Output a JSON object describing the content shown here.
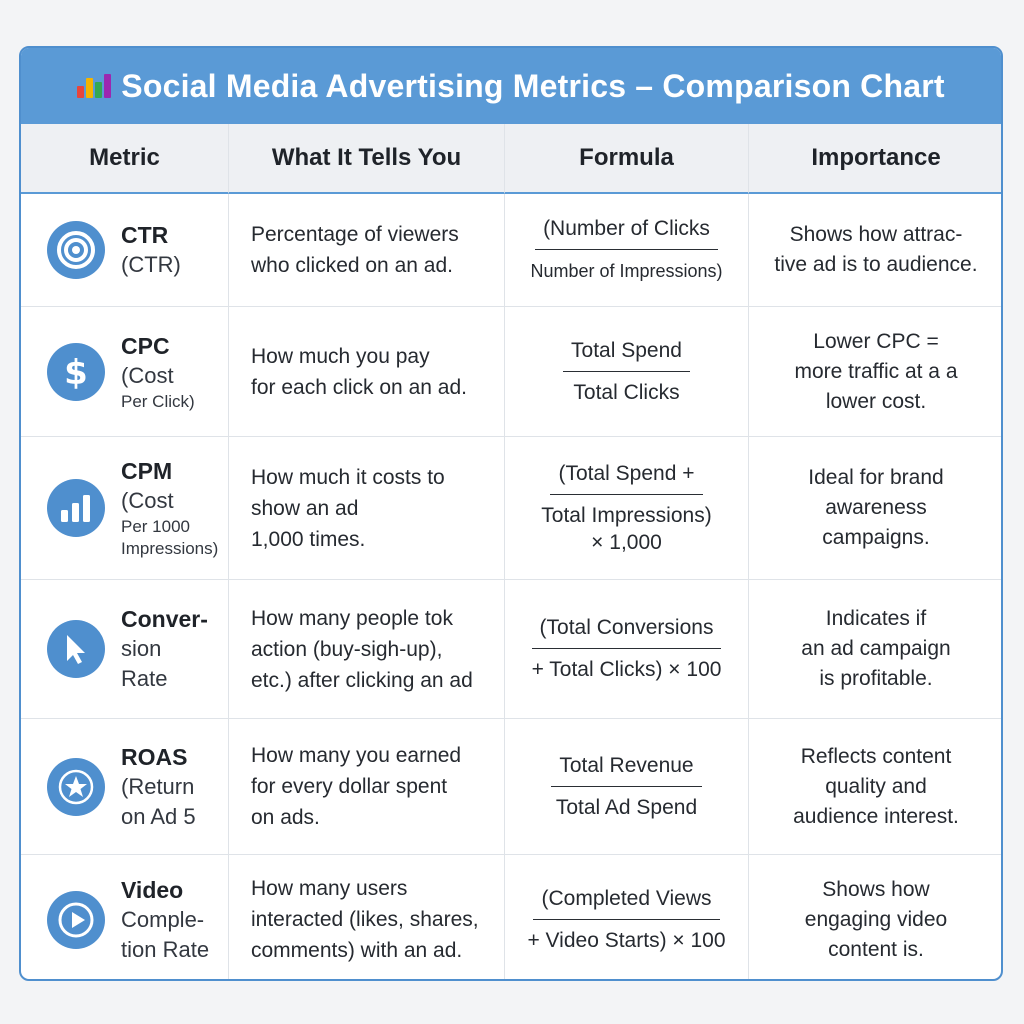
{
  "title": "Social Media Advertising Metrics – Comparison Chart",
  "colors": {
    "accent": "#5a9ad6",
    "icon_bg": "#4f8fce",
    "header_bg": "#eef0f3"
  },
  "columns": [
    "Metric",
    "What It Tells You",
    "Formula",
    "Importance"
  ],
  "rows": [
    {
      "icon": "target-icon",
      "metric_name": "CTR",
      "metric_sub": [
        "(CTR)"
      ],
      "desc": [
        "Percentage of viewers",
        "who clicked on an ad."
      ],
      "formula_num": "(Number of Clicks",
      "formula_den": "Number of Impressions)",
      "formula_extra": "",
      "importance": [
        "Shows how attrac-",
        "tive ad is to audience."
      ]
    },
    {
      "icon": "dollar-icon",
      "metric_name": "CPC",
      "metric_sub": [
        "(Cost",
        "Per Click)"
      ],
      "desc": [
        "How much you pay",
        "for each click on an ad."
      ],
      "formula_num": "Total Spend",
      "formula_den": "Total Clicks",
      "formula_extra": "",
      "importance": [
        "Lower CPC =",
        "more traffic at a a",
        "lower cost."
      ]
    },
    {
      "icon": "bar-chart-icon",
      "metric_name": "CPM",
      "metric_sub": [
        "(Cost",
        "Per 1000",
        "Impressions)"
      ],
      "desc": [
        "How much it costs to",
        "show an ad",
        "1,000 times."
      ],
      "formula_num": "(Total Spend +",
      "formula_den": "Total Impressions)",
      "formula_extra": "× 1,000",
      "importance": [
        "Ideal for brand",
        "awareness",
        "campaigns."
      ]
    },
    {
      "icon": "cursor-icon",
      "metric_name": "Conver-",
      "metric_sub": [
        "sion",
        "Rate"
      ],
      "desc": [
        "How many people tok",
        "action (buy-sigh-up),",
        "etc.) after clicking an ad"
      ],
      "formula_num": "(Total Conversions",
      "formula_den": "+ Total Clicks) × 100",
      "formula_extra": "",
      "importance": [
        "Indicates if",
        "an ad campaign",
        "is profitable."
      ]
    },
    {
      "icon": "star-icon",
      "metric_name": "ROAS",
      "metric_sub": [
        "(Return",
        "on Ad 5"
      ],
      "desc": [
        "How many you earned",
        "for every dollar spent",
        "on ads."
      ],
      "formula_num": "Total Revenue",
      "formula_den": "Total Ad Spend",
      "formula_extra": "",
      "importance": [
        "Reflects content",
        "quality and",
        "audience interest."
      ]
    },
    {
      "icon": "play-icon",
      "metric_name": "Video",
      "metric_sub": [
        "Comple-",
        "tion Rate"
      ],
      "desc": [
        "How many users",
        "interacted (likes, shares,",
        "comments) with an ad."
      ],
      "formula_num": "(Completed Views",
      "formula_den": "+ Video Starts) × 100",
      "formula_extra": "",
      "importance": [
        "Shows how",
        "engaging video",
        "content is."
      ]
    }
  ]
}
